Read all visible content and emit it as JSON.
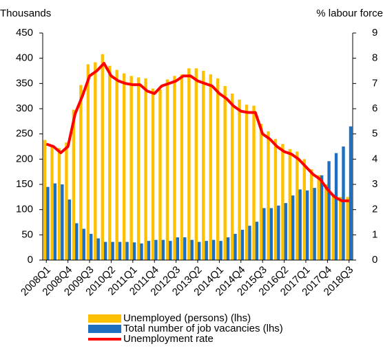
{
  "chart_data": {
    "type": "bar_line",
    "y_label": "Thousands",
    "y2_label": "% labour force",
    "categories": [
      "2008Q1",
      null,
      null,
      "2008Q4",
      null,
      null,
      "2009Q3",
      null,
      null,
      "2010Q2",
      null,
      null,
      "2011Q1",
      null,
      null,
      "2011Q4",
      null,
      null,
      "2012Q3",
      null,
      null,
      "2013Q2",
      null,
      null,
      "2014Q1",
      null,
      null,
      "2014Q4",
      null,
      null,
      "2015Q3",
      null,
      null,
      "2016Q2",
      null,
      null,
      "2017Q1",
      null,
      null,
      "2017Q4",
      null,
      null,
      "2018Q3"
    ],
    "series": [
      {
        "name": "Unemployed (persons) (lhs)",
        "color": "#ffc000",
        "kind": "bar",
        "values": [
          238,
          228,
          222,
          233,
          298,
          347,
          388,
          392,
          408,
          385,
          377,
          370,
          365,
          362,
          360,
          340,
          338,
          358,
          365,
          368,
          380,
          380,
          375,
          368,
          360,
          345,
          330,
          318,
          308,
          306,
          270,
          255,
          240,
          230,
          220,
          215,
          200,
          180,
          168,
          150,
          130,
          125,
          125
        ]
      },
      {
        "name": "Total number of job vacancies (lhs)",
        "color": "#1f6fc0",
        "kind": "bar",
        "values": [
          145,
          152,
          150,
          120,
          73,
          62,
          52,
          43,
          36,
          36,
          36,
          36,
          35,
          33,
          38,
          40,
          40,
          38,
          45,
          45,
          40,
          36,
          38,
          40,
          38,
          45,
          52,
          60,
          68,
          76,
          103,
          103,
          108,
          113,
          128,
          140,
          138,
          143,
          168,
          196,
          212,
          225,
          265
        ]
      },
      {
        "name": "Unemployment rate",
        "color": "#ff0000",
        "kind": "line",
        "axis": "y2",
        "values": [
          4.6,
          4.5,
          4.25,
          4.5,
          5.8,
          6.5,
          7.3,
          7.5,
          7.8,
          7.3,
          7.1,
          7.0,
          6.95,
          6.95,
          6.7,
          6.6,
          6.9,
          7.0,
          7.1,
          7.3,
          7.3,
          7.1,
          7.0,
          6.9,
          6.6,
          6.4,
          6.1,
          5.9,
          5.85,
          5.85,
          5.0,
          4.8,
          4.5,
          4.3,
          4.2,
          4.0,
          3.7,
          3.4,
          3.2,
          2.8,
          2.5,
          2.35,
          2.35
        ]
      }
    ],
    "ylim": [
      0,
      450
    ],
    "yticks": [
      0,
      50,
      100,
      150,
      200,
      250,
      300,
      350,
      400,
      450
    ],
    "y2lim": [
      0,
      9
    ],
    "y2ticks": [
      0,
      1,
      2,
      3,
      4,
      5,
      6,
      7,
      8,
      9
    ]
  }
}
